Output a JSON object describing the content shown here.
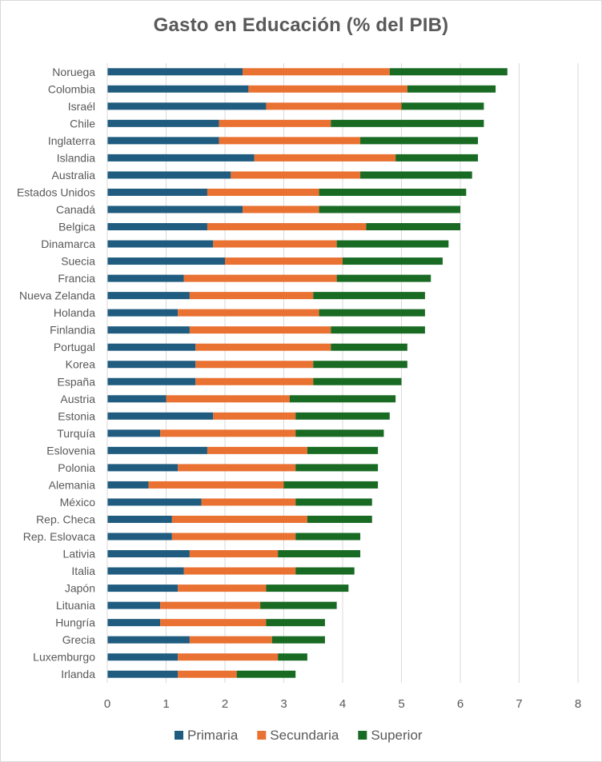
{
  "chart_data": {
    "type": "bar",
    "orientation": "horizontal",
    "stacked": true,
    "title": "Gasto en Educación (% del PIB)",
    "xlabel": "",
    "ylabel": "",
    "xlim": [
      0,
      8
    ],
    "xticks": [
      0,
      1,
      2,
      3,
      4,
      5,
      6,
      7,
      8
    ],
    "grid": "vertical gridlines",
    "legend_position": "bottom",
    "categories": [
      "Noruega",
      "Colombia",
      "Israél",
      "Chile",
      "Inglaterra",
      "Islandia",
      "Australia",
      "Estados Unidos",
      "Canadá",
      "Belgica",
      "Dinamarca",
      "Suecia",
      "Francia",
      "Nueva Zelanda",
      "Holanda",
      "Finlandia",
      "Portugal",
      "Korea",
      "España",
      "Austria",
      "Estonia",
      "Turquía",
      "Eslovenia",
      "Polonia",
      "Alemania",
      "México",
      "Rep. Checa",
      "Rep. Eslovaca",
      "Lativia",
      "Italia",
      "Japón",
      "Lituania",
      "Hungría",
      "Grecia",
      "Luxemburgo",
      "Irlanda"
    ],
    "series": [
      {
        "name": "Primaria",
        "color": "#1f5c7f",
        "values": [
          2.3,
          2.4,
          2.7,
          1.9,
          1.9,
          2.5,
          2.1,
          1.7,
          2.3,
          1.7,
          1.8,
          2.0,
          1.3,
          1.4,
          1.2,
          1.4,
          1.5,
          1.5,
          1.5,
          1.0,
          1.8,
          0.9,
          1.7,
          1.2,
          0.7,
          1.6,
          1.1,
          1.1,
          1.4,
          1.3,
          1.2,
          0.9,
          0.9,
          1.4,
          1.2,
          1.2
        ]
      },
      {
        "name": "Secundaria",
        "color": "#e97132",
        "values": [
          2.5,
          2.7,
          2.3,
          1.9,
          2.4,
          2.4,
          2.2,
          1.9,
          1.3,
          2.7,
          2.1,
          2.0,
          2.6,
          2.1,
          2.4,
          2.4,
          2.3,
          2.0,
          2.0,
          2.1,
          1.4,
          2.3,
          1.7,
          2.0,
          2.3,
          1.6,
          2.3,
          2.1,
          1.5,
          1.9,
          1.5,
          1.7,
          1.8,
          1.4,
          1.7,
          1.0
        ]
      },
      {
        "name": "Superior",
        "color": "#196b24",
        "values": [
          2.0,
          1.5,
          1.4,
          2.6,
          2.0,
          1.4,
          1.9,
          2.5,
          2.4,
          1.6,
          1.9,
          1.7,
          1.6,
          1.9,
          1.8,
          1.6,
          1.3,
          1.6,
          1.5,
          1.8,
          1.6,
          1.5,
          1.2,
          1.4,
          1.6,
          1.3,
          1.1,
          1.1,
          1.4,
          1.0,
          1.4,
          1.3,
          1.0,
          0.9,
          0.5,
          1.0
        ]
      }
    ]
  }
}
